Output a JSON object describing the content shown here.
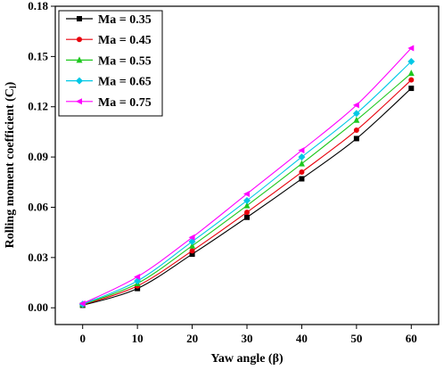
{
  "chart_data": {
    "type": "line",
    "xlabel": "Yaw angle (β)",
    "ylabel_main": "Rolling moment coefficient (C",
    "ylabel_sub": "l",
    "ylabel_close": ")",
    "x": [
      0,
      10,
      20,
      30,
      40,
      50,
      60
    ],
    "xlim": [
      -5,
      65
    ],
    "ylim": [
      -0.01,
      0.18
    ],
    "xticks": [
      "0",
      "10",
      "20",
      "30",
      "40",
      "50",
      "60"
    ],
    "yticks": [
      "0.00",
      "0.03",
      "0.06",
      "0.09",
      "0.12",
      "0.15",
      "0.18"
    ],
    "grid": false,
    "legend_position": "top-left",
    "series": [
      {
        "name": "Ma = 0.35",
        "color": "#000000",
        "marker": "square",
        "values": [
          0.0015,
          0.0115,
          0.032,
          0.054,
          0.077,
          0.101,
          0.131
        ]
      },
      {
        "name": "Ma = 0.45",
        "color": "#e8000b",
        "marker": "circle",
        "values": [
          0.0018,
          0.013,
          0.034,
          0.057,
          0.081,
          0.106,
          0.136
        ]
      },
      {
        "name": "Ma = 0.55",
        "color": "#1ec81e",
        "marker": "triangle-up",
        "values": [
          0.002,
          0.0145,
          0.037,
          0.061,
          0.086,
          0.112,
          0.14
        ]
      },
      {
        "name": "Ma = 0.65",
        "color": "#00c8e6",
        "marker": "diamond",
        "values": [
          0.0022,
          0.016,
          0.0395,
          0.064,
          0.09,
          0.116,
          0.147
        ]
      },
      {
        "name": "Ma = 0.75",
        "color": "#ff00ff",
        "marker": "triangle-left",
        "values": [
          0.0025,
          0.0185,
          0.042,
          0.068,
          0.094,
          0.121,
          0.155
        ]
      }
    ]
  }
}
